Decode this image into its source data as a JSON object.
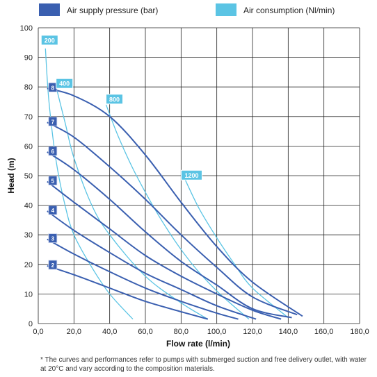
{
  "chart_data": {
    "type": "line",
    "title": "",
    "xlabel": "Flow rate (l/min)",
    "ylabel": "Head (m)",
    "xlim": [
      0,
      180
    ],
    "ylim": [
      0,
      100
    ],
    "x_ticks": [
      "0,0",
      "20,0",
      "40,0",
      "60,0",
      "80,0",
      "100,0",
      "120,0",
      "140,0",
      "160,0",
      "180,0"
    ],
    "y_ticks": [
      "0",
      "10",
      "20",
      "30",
      "40",
      "50",
      "60",
      "70",
      "80",
      "90",
      "100"
    ],
    "grid": true,
    "legend": [
      {
        "name": "Air supply pressure (bar)",
        "color": "#3a5fb0"
      },
      {
        "name": "Air consumption (Nl/min)",
        "color": "#5bc4e4"
      }
    ],
    "pressure_series": [
      {
        "name": "2",
        "points": [
          [
            5,
            19.5
          ],
          [
            20,
            16.5
          ],
          [
            40,
            12
          ],
          [
            60,
            7.5
          ],
          [
            80,
            4
          ],
          [
            95,
            1.5
          ]
        ]
      },
      {
        "name": "3",
        "points": [
          [
            5,
            28.5
          ],
          [
            20,
            23.5
          ],
          [
            40,
            17.5
          ],
          [
            60,
            12
          ],
          [
            80,
            7.5
          ],
          [
            100,
            3.5
          ],
          [
            112,
            1.5
          ]
        ]
      },
      {
        "name": "4",
        "points": [
          [
            5,
            38
          ],
          [
            20,
            31.5
          ],
          [
            40,
            24
          ],
          [
            60,
            17
          ],
          [
            80,
            11.5
          ],
          [
            100,
            6
          ],
          [
            122,
            1.5
          ]
        ]
      },
      {
        "name": "5",
        "points": [
          [
            5,
            48
          ],
          [
            20,
            41
          ],
          [
            40,
            32
          ],
          [
            60,
            23
          ],
          [
            80,
            16
          ],
          [
            100,
            10
          ],
          [
            120,
            4.5
          ],
          [
            136,
            1.5
          ]
        ]
      },
      {
        "name": "6",
        "points": [
          [
            5,
            58
          ],
          [
            20,
            52
          ],
          [
            40,
            42
          ],
          [
            60,
            31
          ],
          [
            80,
            21
          ],
          [
            100,
            13
          ],
          [
            120,
            5
          ],
          [
            142,
            2
          ]
        ]
      },
      {
        "name": "7",
        "points": [
          [
            5,
            68
          ],
          [
            20,
            63
          ],
          [
            40,
            53
          ],
          [
            60,
            42
          ],
          [
            80,
            30
          ],
          [
            100,
            19
          ],
          [
            120,
            9
          ],
          [
            145,
            3
          ]
        ]
      },
      {
        "name": "8",
        "points": [
          [
            5,
            79.5
          ],
          [
            20,
            77
          ],
          [
            40,
            70
          ],
          [
            60,
            57
          ],
          [
            80,
            41
          ],
          [
            100,
            26
          ],
          [
            120,
            14
          ],
          [
            148,
            2.5
          ]
        ]
      }
    ],
    "consumption_series": [
      {
        "name": "200",
        "points": [
          [
            4,
            93
          ],
          [
            6,
            75
          ],
          [
            10,
            55
          ],
          [
            15,
            40
          ],
          [
            20,
            30
          ],
          [
            30,
            19
          ],
          [
            40,
            10
          ],
          [
            53,
            1.5
          ]
        ]
      },
      {
        "name": "400",
        "points": [
          [
            10,
            80
          ],
          [
            15,
            68
          ],
          [
            20,
            56
          ],
          [
            30,
            40
          ],
          [
            40,
            30
          ],
          [
            60,
            16
          ],
          [
            80,
            7
          ],
          [
            95,
            1.5
          ]
        ]
      },
      {
        "name": "800",
        "points": [
          [
            38,
            74
          ],
          [
            45,
            63
          ],
          [
            55,
            50
          ],
          [
            70,
            34
          ],
          [
            85,
            21
          ],
          [
            100,
            11
          ],
          [
            118,
            1.5
          ]
        ]
      },
      {
        "name": "1200",
        "points": [
          [
            82,
            49
          ],
          [
            90,
            39
          ],
          [
            100,
            29
          ],
          [
            110,
            20
          ],
          [
            120,
            12
          ],
          [
            140,
            2
          ]
        ]
      }
    ]
  },
  "footnote": "* The curves and performances refer to pumps with submerged suction and free delivery outlet, with water at 20°C and vary according to the composition materials."
}
